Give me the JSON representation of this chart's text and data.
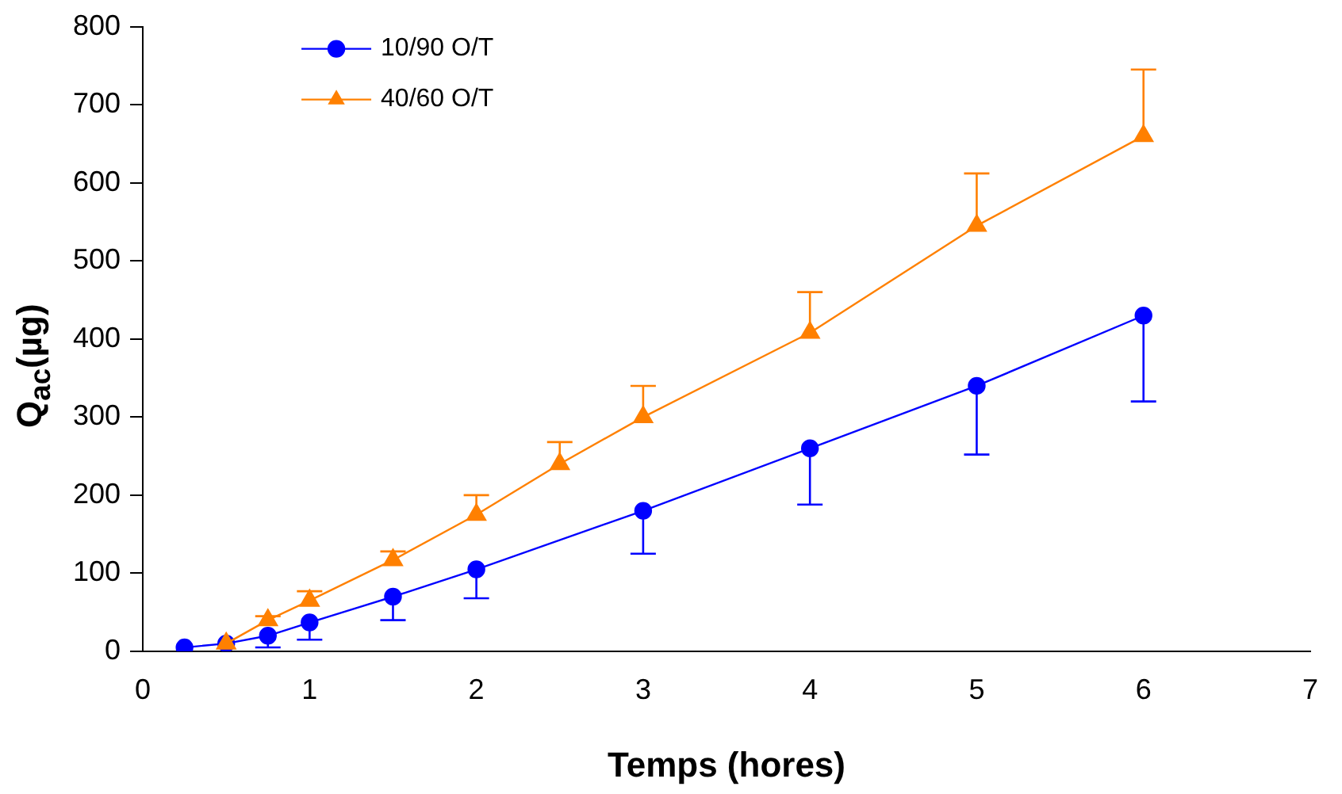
{
  "chart_data": {
    "type": "line",
    "xlabel": "Temps (hores)",
    "ylabel": "Q$_{ac}$(µg)",
    "xlim": [
      0,
      7
    ],
    "xticks": [
      0,
      1,
      2,
      3,
      4,
      5,
      6,
      7
    ],
    "ylim": [
      0,
      800
    ],
    "yticks": [
      0,
      100,
      200,
      300,
      400,
      500,
      600,
      700,
      800
    ],
    "grid": false,
    "legend": "top left",
    "line_style": "solid",
    "series": [
      {
        "name": "10/90 O/T",
        "color": "#0000ff",
        "marker": "circle",
        "x": [
          0.25,
          0.5,
          0.75,
          1,
          1.5,
          2,
          3,
          4,
          5,
          6
        ],
        "values": [
          5,
          10,
          20,
          37,
          70,
          105,
          180,
          260,
          340,
          430
        ],
        "errors": [
          null,
          null,
          [
            5,
            20
          ],
          [
            15,
            37
          ],
          [
            40,
            70
          ],
          [
            68,
            105
          ],
          [
            125,
            180
          ],
          [
            188,
            260
          ],
          [
            252,
            340
          ],
          [
            320,
            430
          ]
        ]
      },
      {
        "name": "40/60 O/T",
        "color": "#ff8000",
        "marker": "triangle",
        "x": [
          0.5,
          0.75,
          1,
          1.5,
          2,
          2.5,
          3,
          4,
          5,
          6
        ],
        "values": [
          10,
          40,
          65,
          117,
          175,
          240,
          300,
          408,
          545,
          660
        ],
        "errors": [
          null,
          [
            40,
            45
          ],
          [
            65,
            77
          ],
          [
            117,
            128
          ],
          [
            175,
            200
          ],
          [
            240,
            268
          ],
          [
            300,
            340
          ],
          [
            408,
            460
          ],
          [
            545,
            612
          ],
          [
            660,
            745
          ]
        ]
      }
    ]
  }
}
